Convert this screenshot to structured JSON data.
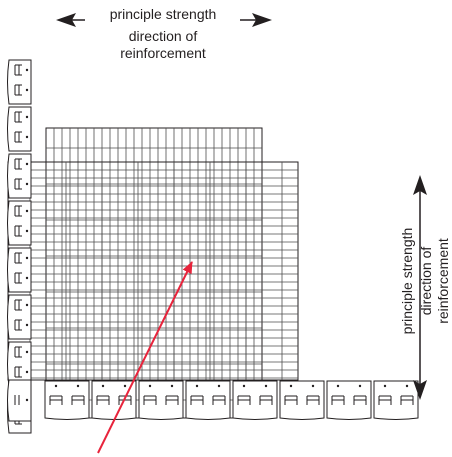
{
  "top_labels": {
    "line1": "principle strength",
    "line2": "direction of",
    "line3": "reinforcement"
  },
  "right_labels": {
    "line1": "principle strength",
    "line2": "direction of",
    "line3": "reinforcement"
  },
  "colors": {
    "ink": "#231f20",
    "grid": "#4d4d4d",
    "pointer_arrow": "#e8243c",
    "background": "#ffffff"
  },
  "icons": {
    "block_left": "retaining-wall-block-icon",
    "block_bottom": "retaining-wall-block-icon"
  }
}
